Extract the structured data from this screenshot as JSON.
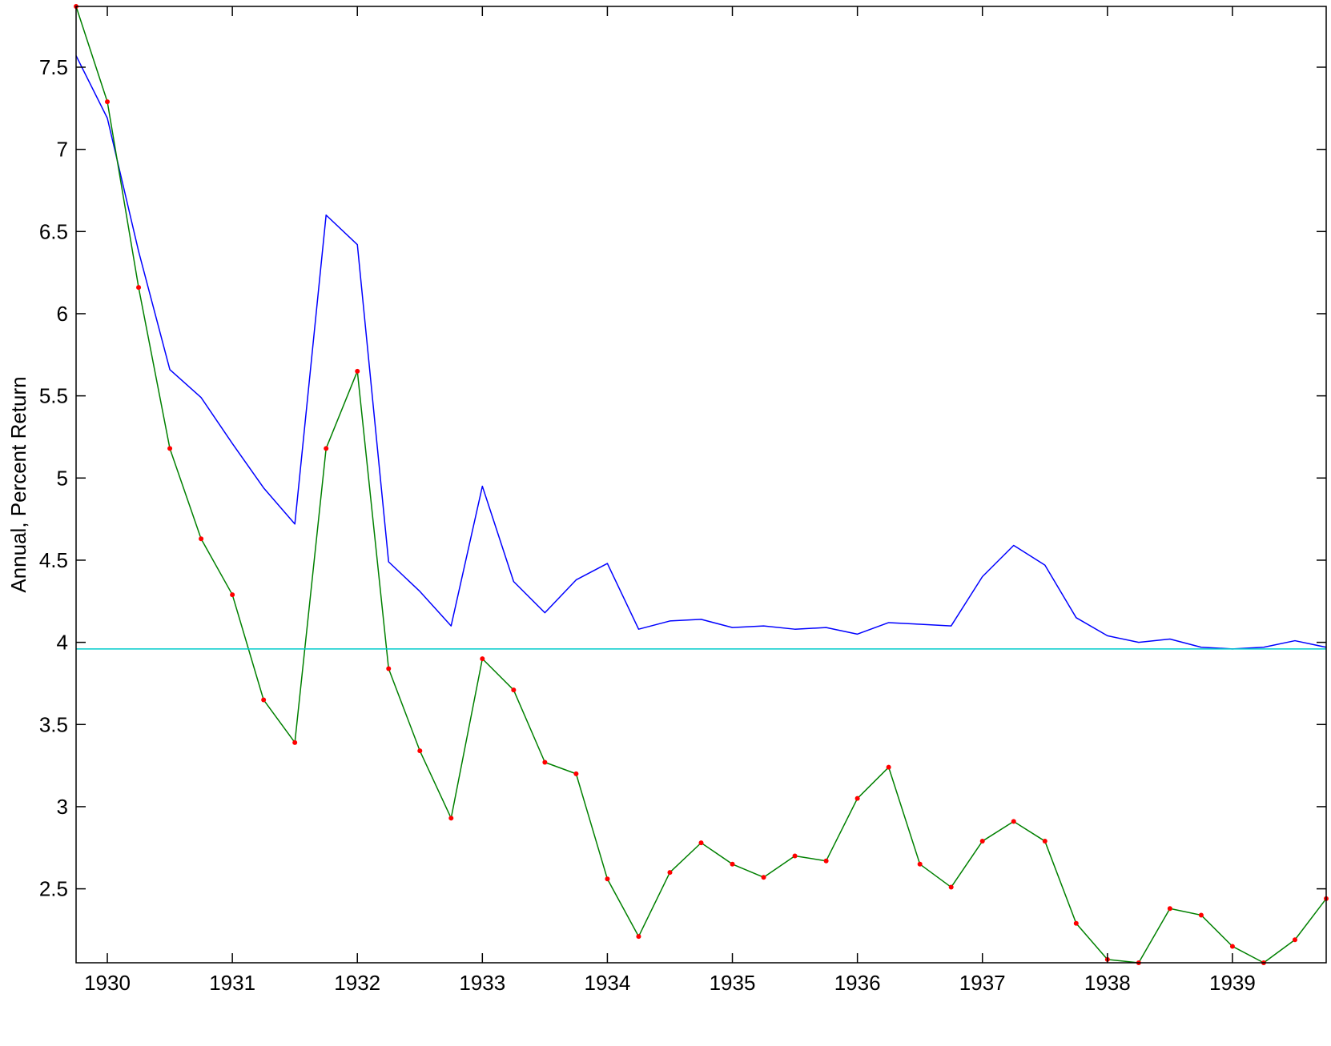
{
  "chart_data": {
    "type": "line",
    "title": "",
    "xlabel": "",
    "ylabel": "Annual, Percent Return",
    "xlim": [
      1929.75,
      1939.75
    ],
    "ylim": [
      2.05,
      7.87
    ],
    "grid": false,
    "x_ticks": [
      1930,
      1931,
      1932,
      1933,
      1934,
      1935,
      1936,
      1937,
      1938,
      1939
    ],
    "x_tick_labels": [
      "1930",
      "1931",
      "1932",
      "1933",
      "1934",
      "1935",
      "1936",
      "1937",
      "1938",
      "1939"
    ],
    "y_ticks": [
      2.5,
      3,
      3.5,
      4,
      4.5,
      5,
      5.5,
      6,
      6.5,
      7,
      7.5
    ],
    "y_tick_labels": [
      "2.5",
      "3",
      "3.5",
      "4",
      "4.5",
      "5",
      "5.5",
      "6",
      "6.5",
      "7",
      "7.5"
    ],
    "x": [
      1929.75,
      1930.0,
      1930.25,
      1930.5,
      1930.75,
      1931.0,
      1931.25,
      1931.5,
      1931.75,
      1932.0,
      1932.25,
      1932.5,
      1932.75,
      1933.0,
      1933.25,
      1933.5,
      1933.75,
      1934.0,
      1934.25,
      1934.5,
      1934.75,
      1935.0,
      1935.25,
      1935.5,
      1935.75,
      1936.0,
      1936.25,
      1936.5,
      1936.75,
      1937.0,
      1937.25,
      1937.5,
      1937.75,
      1938.0,
      1938.25,
      1938.5,
      1938.75,
      1939.0,
      1939.25,
      1939.5,
      1939.75
    ],
    "series": [
      {
        "color": "#0000ff",
        "markers": false,
        "values": [
          7.57,
          7.19,
          6.38,
          5.66,
          5.49,
          5.21,
          4.94,
          4.72,
          6.6,
          6.42,
          4.49,
          4.31,
          4.1,
          4.95,
          4.37,
          4.18,
          4.38,
          4.48,
          4.08,
          4.13,
          4.14,
          4.09,
          4.1,
          4.08,
          4.09,
          4.05,
          4.12,
          4.11,
          4.1,
          4.4,
          4.59,
          4.47,
          4.15,
          4.04,
          4.0,
          4.02,
          3.97,
          3.96,
          3.97,
          4.01,
          3.97
        ]
      },
      {
        "color": "#008000",
        "marker_color": "#ff0000",
        "markers": true,
        "values": [
          7.87,
          7.29,
          6.16,
          5.18,
          4.63,
          4.29,
          3.65,
          3.39,
          5.18,
          5.65,
          3.84,
          3.34,
          2.93,
          3.9,
          3.71,
          3.27,
          3.2,
          2.56,
          2.21,
          2.6,
          2.78,
          2.65,
          2.57,
          2.7,
          2.67,
          3.05,
          3.24,
          2.65,
          2.51,
          2.79,
          2.91,
          2.79,
          2.29,
          2.07,
          2.05,
          2.38,
          2.34,
          2.15,
          2.05,
          2.19,
          2.44
        ]
      },
      {
        "color": "#00cccc",
        "markers": false,
        "constant": 3.96
      }
    ]
  }
}
